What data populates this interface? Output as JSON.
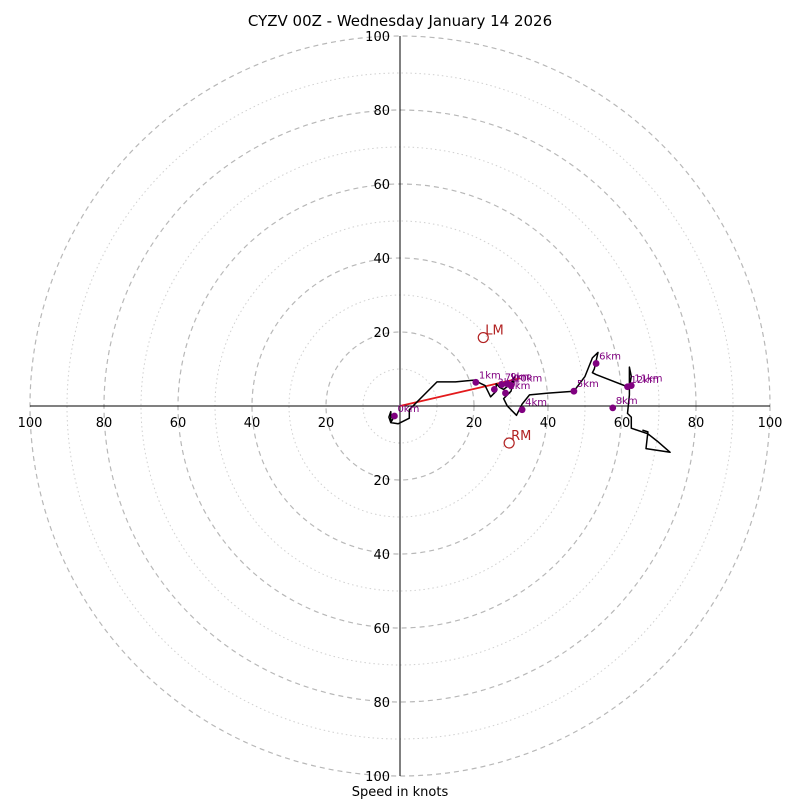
{
  "chart_data": {
    "type": "hodograph",
    "title": "CYZV 00Z - Wednesday January 14 2026",
    "xlabel": "Speed in knots",
    "ring_max": 100,
    "major_rings": [
      20,
      40,
      60,
      80,
      100
    ],
    "minor_rings": [
      10,
      30,
      50,
      70,
      90
    ],
    "tick_values": [
      20,
      40,
      60,
      80,
      100
    ],
    "tick_labels": [
      "20",
      "40",
      "60",
      "80",
      "100"
    ],
    "colors": {
      "profile": "#000000",
      "heights": "#800080",
      "storm": "#b22222",
      "shear": "#e31a1c"
    },
    "profile": [
      [
        -1.5,
        -2.7
      ],
      [
        -2.5,
        -4.5
      ],
      [
        -2.5,
        -1.5
      ],
      [
        -3,
        -3
      ],
      [
        -2.5,
        -4.5
      ],
      [
        -0.5,
        -4.8
      ],
      [
        2.5,
        -3.3
      ],
      [
        2.5,
        -1
      ],
      [
        10,
        6.5
      ],
      [
        15,
        6.5
      ],
      [
        20,
        7
      ],
      [
        22,
        6
      ],
      [
        23,
        5.5
      ],
      [
        24.5,
        2.5
      ],
      [
        26,
        4
      ],
      [
        26,
        6
      ],
      [
        27,
        5
      ],
      [
        28,
        4.5
      ],
      [
        30,
        6
      ],
      [
        31,
        8
      ],
      [
        30,
        4
      ],
      [
        28,
        2
      ],
      [
        29,
        0
      ],
      [
        31.5,
        -2.5
      ],
      [
        33,
        0.5
      ],
      [
        35,
        3
      ],
      [
        40,
        3.5
      ],
      [
        47,
        4
      ],
      [
        50,
        8
      ],
      [
        52,
        13
      ],
      [
        53.5,
        14.5
      ],
      [
        52.5,
        10
      ],
      [
        52,
        9
      ],
      [
        53,
        8.5
      ],
      [
        62,
        5
      ],
      [
        62.5,
        8
      ],
      [
        62,
        10.5
      ],
      [
        62,
        3
      ],
      [
        61.5,
        -2
      ],
      [
        62.5,
        -3
      ],
      [
        62.5,
        -6
      ],
      [
        67,
        -7.5
      ],
      [
        69.5,
        -9.5
      ],
      [
        73,
        -12.5
      ],
      [
        66.5,
        -11.5
      ],
      [
        67,
        -7
      ],
      [
        65.5,
        -6.5
      ]
    ],
    "height_markers": [
      {
        "label": "0km",
        "u": -1.5,
        "v": -2.7
      },
      {
        "label": "1km",
        "u": 20.5,
        "v": 6.4
      },
      {
        "label": "2km",
        "u": 28.5,
        "v": 3.5
      },
      {
        "label": "3km",
        "u": 25.5,
        "v": 4.5
      },
      {
        "label": "4km",
        "u": 33.0,
        "v": -1.0
      },
      {
        "label": "5km",
        "u": 47.0,
        "v": 4.0
      },
      {
        "label": "6km",
        "u": 53.0,
        "v": 11.5
      },
      {
        "label": "7km",
        "u": 27.5,
        "v": 5.8
      },
      {
        "label": "8km",
        "u": 57.5,
        "v": -0.5
      },
      {
        "label": "9km",
        "u": 29.0,
        "v": 6.0
      },
      {
        "label": "10km",
        "u": 30.0,
        "v": 5.5
      },
      {
        "label": "11km",
        "u": 62.5,
        "v": 5.5
      },
      {
        "label": "12km",
        "u": 61.5,
        "v": 5.2
      }
    ],
    "storm_motion": [
      {
        "label": "LM",
        "u": 22.5,
        "v": 18.5
      },
      {
        "label": "RM",
        "u": 29.5,
        "v": -10.0
      }
    ],
    "shear_vector": {
      "from": [
        0,
        0
      ],
      "to": [
        32.5,
        7.5
      ]
    }
  }
}
